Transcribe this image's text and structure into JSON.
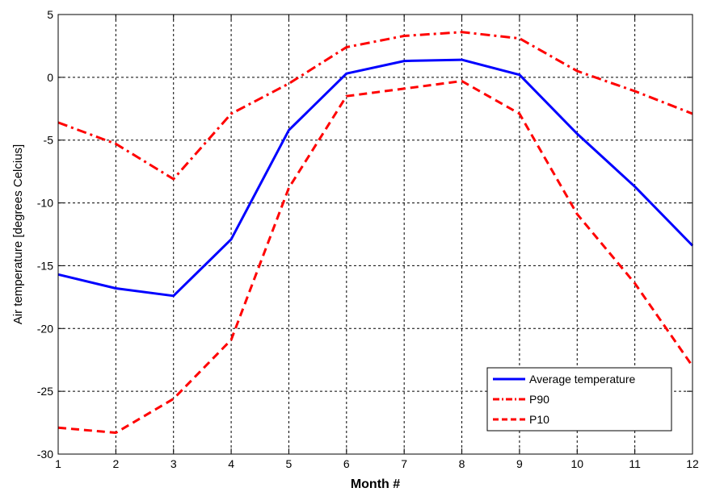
{
  "chart_data": {
    "type": "line",
    "title": "",
    "xlabel": "Month #",
    "ylabel": "Air temperature [degrees Celcius]",
    "xlim": [
      1,
      12
    ],
    "ylim": [
      -30,
      5
    ],
    "xticks": [
      1,
      2,
      3,
      4,
      5,
      6,
      7,
      8,
      9,
      10,
      11,
      12
    ],
    "yticks": [
      -30,
      -25,
      -20,
      -15,
      -10,
      -5,
      0,
      5
    ],
    "grid": true,
    "legend_position": "bottom-right",
    "x": [
      1,
      2,
      3,
      4,
      5,
      6,
      7,
      8,
      9,
      10,
      11,
      12
    ],
    "series": [
      {
        "name": "Average temperature",
        "color": "#0000ff",
        "style": "solid",
        "values": [
          -15.7,
          -16.8,
          -17.4,
          -12.9,
          -4.2,
          0.3,
          1.3,
          1.4,
          0.2,
          -4.5,
          -8.7,
          -13.4
        ]
      },
      {
        "name": "P90",
        "color": "#ff0000",
        "style": "dashdot",
        "values": [
          -3.6,
          -5.3,
          -8.1,
          -2.9,
          -0.5,
          2.4,
          3.3,
          3.6,
          3.1,
          0.5,
          -1.1,
          -2.9
        ]
      },
      {
        "name": "P10",
        "color": "#ff0000",
        "style": "dashed",
        "values": [
          -27.9,
          -28.3,
          -25.6,
          -20.9,
          -8.8,
          -1.5,
          -0.9,
          -0.3,
          -2.9,
          -10.9,
          -16.4,
          -23.0
        ]
      }
    ]
  }
}
